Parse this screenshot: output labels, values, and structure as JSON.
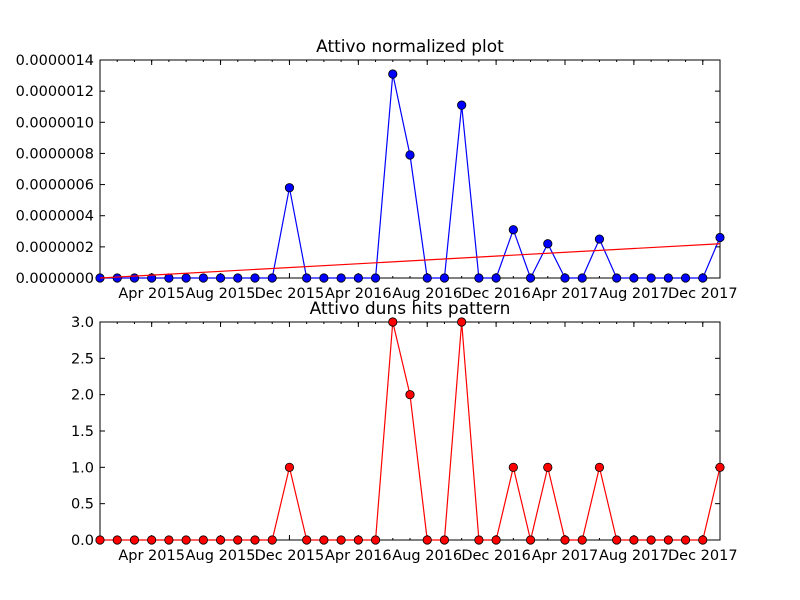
{
  "chart_data": [
    {
      "type": "line",
      "title": "Attivo normalized plot",
      "xlabel": "",
      "ylabel": "",
      "x_tick_labels": [
        "Apr 2015",
        "Aug 2015",
        "Dec 2015",
        "Apr 2016",
        "Aug 2016",
        "Dec 2016",
        "Apr 2017",
        "Aug 2017",
        "Dec 2017"
      ],
      "y_tick_labels": [
        "0.0000000",
        "0.0000002",
        "0.0000004",
        "0.0000006",
        "0.0000008",
        "0.0000010",
        "0.0000012",
        "0.0000014"
      ],
      "ylim": [
        0,
        1.4e-06
      ],
      "grid": false,
      "x": [
        "2015-01",
        "2015-02",
        "2015-03",
        "2015-04",
        "2015-05",
        "2015-06",
        "2015-07",
        "2015-08",
        "2015-09",
        "2015-10",
        "2015-11",
        "2015-12",
        "2016-01",
        "2016-02",
        "2016-03",
        "2016-04",
        "2016-05",
        "2016-06",
        "2016-07",
        "2016-08",
        "2016-09",
        "2016-10",
        "2016-11",
        "2016-12",
        "2017-01",
        "2017-02",
        "2017-03",
        "2017-04",
        "2017-05",
        "2017-06",
        "2017-07",
        "2017-08",
        "2017-09",
        "2017-10",
        "2017-11",
        "2017-12",
        "2018-01"
      ],
      "series": [
        {
          "color": "#0000ff",
          "marker": "circle",
          "values": [
            0,
            0,
            0,
            0,
            0,
            0,
            0,
            0,
            0,
            0,
            0,
            5.8e-07,
            0,
            0,
            0,
            0,
            0,
            1.31e-06,
            7.9e-07,
            0,
            0,
            1.11e-06,
            0,
            0,
            3.1e-07,
            0,
            2.2e-07,
            0,
            0,
            2.5e-07,
            0,
            0,
            0,
            0,
            0,
            0,
            2.6e-07
          ]
        },
        {
          "color": "#ff0000",
          "marker": "none",
          "trend_line": [
            0.0,
            2.2e-07
          ]
        }
      ]
    },
    {
      "type": "line",
      "title": "Attivo duns hits pattern",
      "xlabel": "",
      "ylabel": "",
      "x_tick_labels": [
        "Apr 2015",
        "Aug 2015",
        "Dec 2015",
        "Apr 2016",
        "Aug 2016",
        "Dec 2016",
        "Apr 2017",
        "Aug 2017",
        "Dec 2017"
      ],
      "y_tick_labels": [
        "0.0",
        "0.5",
        "1.0",
        "1.5",
        "2.0",
        "2.5",
        "3.0"
      ],
      "ylim": [
        0,
        3
      ],
      "grid": false,
      "x": [
        "2015-01",
        "2015-02",
        "2015-03",
        "2015-04",
        "2015-05",
        "2015-06",
        "2015-07",
        "2015-08",
        "2015-09",
        "2015-10",
        "2015-11",
        "2015-12",
        "2016-01",
        "2016-02",
        "2016-03",
        "2016-04",
        "2016-05",
        "2016-06",
        "2016-07",
        "2016-08",
        "2016-09",
        "2016-10",
        "2016-11",
        "2016-12",
        "2017-01",
        "2017-02",
        "2017-03",
        "2017-04",
        "2017-05",
        "2017-06",
        "2017-07",
        "2017-08",
        "2017-09",
        "2017-10",
        "2017-11",
        "2017-12",
        "2018-01"
      ],
      "series": [
        {
          "color": "#ff0000",
          "marker": "circle",
          "values": [
            0,
            0,
            0,
            0,
            0,
            0,
            0,
            0,
            0,
            0,
            0,
            1,
            0,
            0,
            0,
            0,
            0,
            3,
            2,
            0,
            0,
            3,
            0,
            0,
            1,
            0,
            1,
            0,
            0,
            1,
            0,
            0,
            0,
            0,
            0,
            0,
            1
          ]
        }
      ]
    }
  ]
}
